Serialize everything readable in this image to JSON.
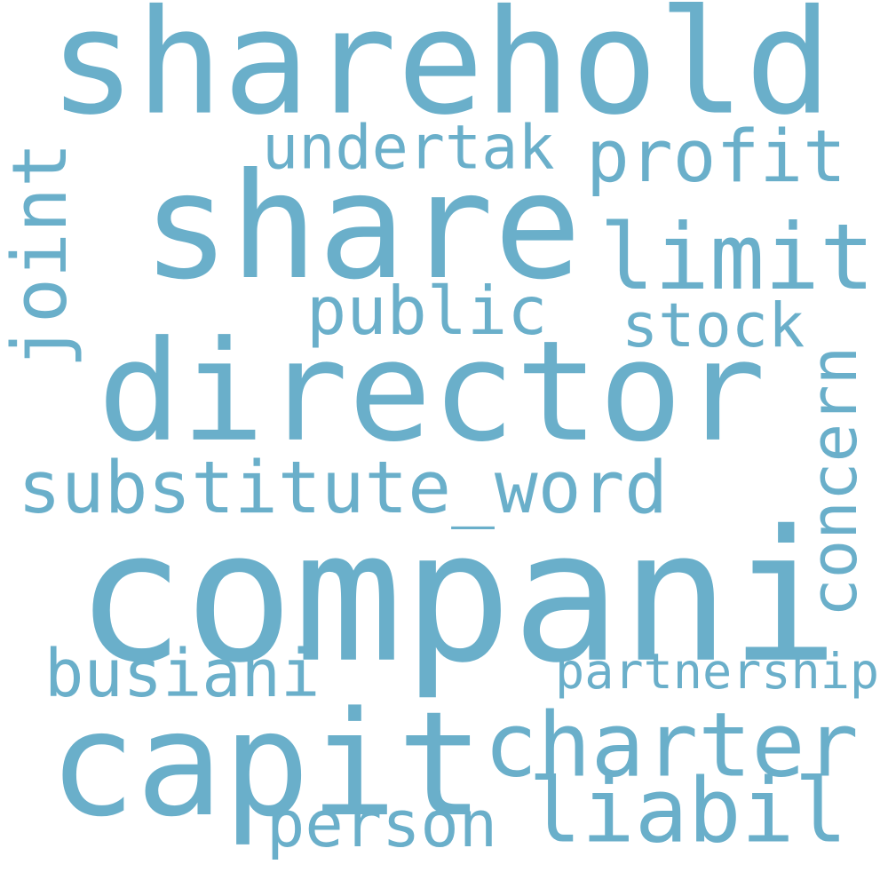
{
  "word_color": "#6aafca",
  "words": [
    {
      "text": "sharehold"
    },
    {
      "text": "share"
    },
    {
      "text": "undertak"
    },
    {
      "text": "profit"
    },
    {
      "text": "limit"
    },
    {
      "text": "joint"
    },
    {
      "text": "public"
    },
    {
      "text": "stock"
    },
    {
      "text": "director"
    },
    {
      "text": "concern"
    },
    {
      "text": "substitute_word"
    },
    {
      "text": "compani"
    },
    {
      "text": "partnership"
    },
    {
      "text": "busiani"
    },
    {
      "text": "capit"
    },
    {
      "text": "charter"
    },
    {
      "text": "liabil"
    },
    {
      "text": "person"
    }
  ]
}
